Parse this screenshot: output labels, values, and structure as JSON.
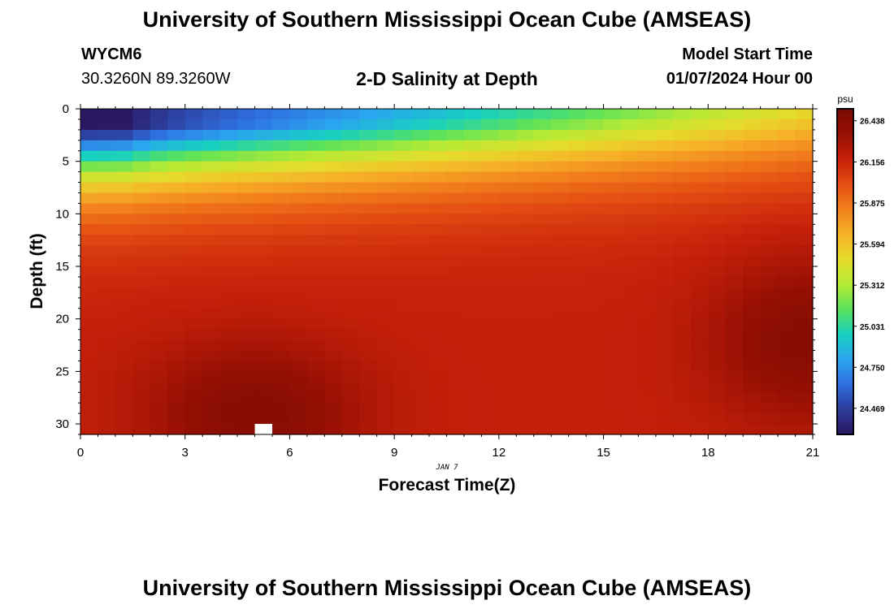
{
  "header": {
    "title": "University of Southern Mississippi Ocean Cube (AMSEAS)",
    "station_id": "WYCM6",
    "coordinates": "30.3260N  89.3260W",
    "subtitle": "2-D Salinity at Depth",
    "model_start_label": "Model Start Time",
    "model_start_value": "01/07/2024 Hour 00"
  },
  "footer": {
    "title": "University of Southern Mississippi Ocean Cube (AMSEAS)"
  },
  "colors": {
    "background": "#ffffff",
    "axis": "#000000",
    "missing_cell": "#ffffff"
  },
  "chart_data": {
    "type": "heatmap",
    "title": "2-D Salinity at Depth",
    "xlabel": "Forecast Time(Z)",
    "ylabel": "Depth (ft)",
    "x_sublabel": "JAN 7",
    "xlim": [
      0,
      21
    ],
    "ylim": [
      31,
      0
    ],
    "x_ticks": [
      0,
      3,
      6,
      9,
      12,
      15,
      18,
      21
    ],
    "y_ticks": [
      0,
      5,
      10,
      15,
      20,
      25,
      30
    ],
    "x_resolution_hours": 0.5,
    "y_resolution_ft": 1,
    "colorbar": {
      "unit_label": "psu",
      "range": [
        24.29,
        26.52
      ],
      "tick_values": [
        "24.469",
        "24.750",
        "25.031",
        "25.312",
        "25.594",
        "25.875",
        "26.156",
        "26.438"
      ],
      "colormap": [
        "#2a1660",
        "#2c3c9a",
        "#2f6fe0",
        "#2aa5ef",
        "#18d0c0",
        "#5be25a",
        "#b6ea34",
        "#e6db2c",
        "#f6b228",
        "#f2801c",
        "#e44d12",
        "#c6200a",
        "#961003",
        "#7a0a02"
      ]
    },
    "description": "Salinity in psu at depths 0-31 ft over forecast hours 0-21; low salinity (~24.3-25.3) near the surface, high salinity (~26.4) at depth with a maximum near 4-6 h at 25-31 ft and near 20-21 h at 20-24 ft.",
    "model": {
      "surface_start": 24.35,
      "surface_rate_per_hour": 0.055,
      "surface_curve": 0.9,
      "surface_min": 24.3,
      "deep_base": 26.18,
      "mixing_start_depth": 1.5,
      "mixing_scale_ft": 5.5,
      "mixing_shift_per_hour": 0.07,
      "mixing_power": 1.35,
      "blob1": {
        "amplitude": 0.26,
        "center_hour": 5.0,
        "center_depth": 29.0,
        "spread_hour": 3.2,
        "spread_depth": 7.0
      },
      "blob2": {
        "amplitude": 0.26,
        "center_hour": 20.8,
        "center_depth": 22.0,
        "spread_hour": 2.8,
        "spread_depth": 8.0
      },
      "missing_cells": [
        [
          5.0,
          30.0
        ]
      ]
    }
  }
}
